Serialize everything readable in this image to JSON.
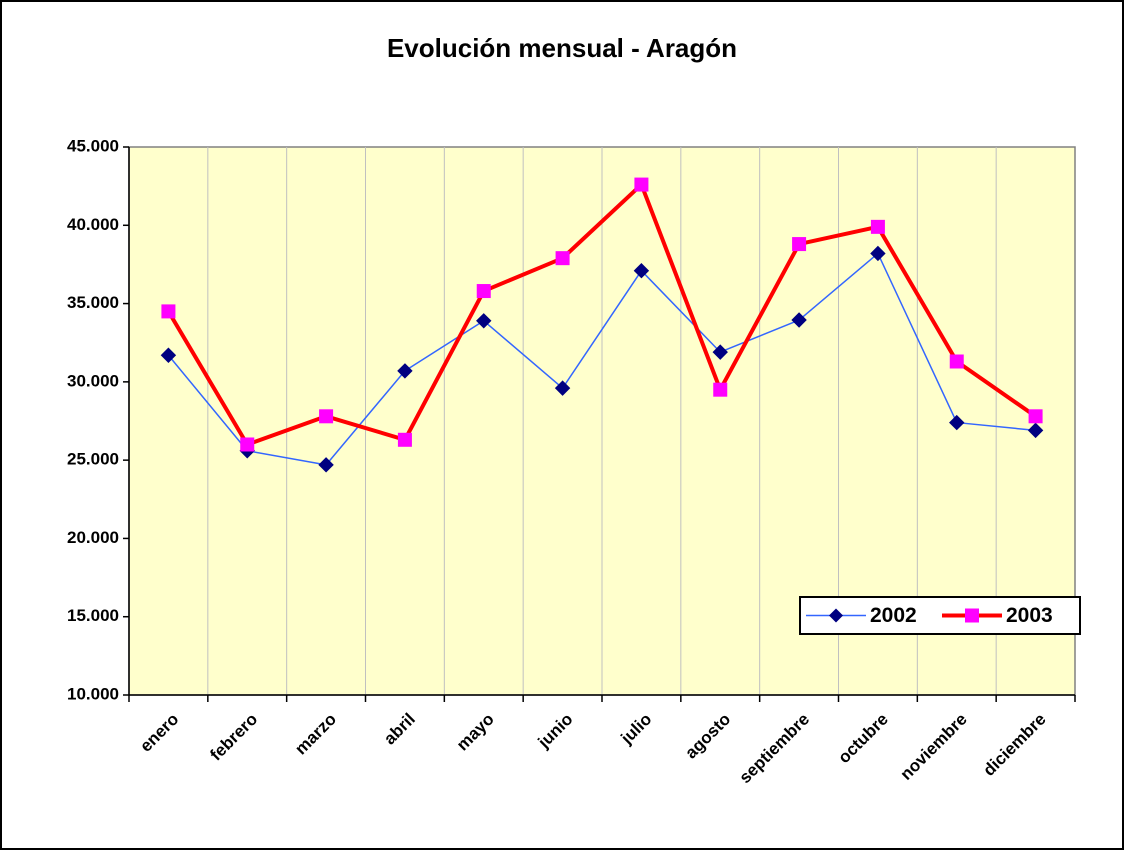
{
  "chart_data": {
    "type": "line",
    "title": "Evolución mensual - Aragón",
    "categories": [
      "enero",
      "febrero",
      "marzo",
      "abril",
      "mayo",
      "junio",
      "julio",
      "agosto",
      "septiembre",
      "octubre",
      "noviembre",
      "diciembre"
    ],
    "series": [
      {
        "name": "2002",
        "color": "#3366ff",
        "marker_color": "#000080",
        "marker": "diamond",
        "values": [
          31700,
          25600,
          24700,
          30700,
          33900,
          29600,
          37100,
          31900,
          33950,
          38200,
          27400,
          26900
        ]
      },
      {
        "name": "2003",
        "color": "#ff0000",
        "marker_color": "#ff00ff",
        "marker": "square",
        "values": [
          34500,
          26000,
          27800,
          26300,
          35800,
          37900,
          42600,
          29500,
          38800,
          39900,
          31300,
          27800
        ]
      }
    ],
    "ylim": [
      10000,
      45000
    ],
    "yticks": [
      {
        "value": 10000,
        "label": "10.000"
      },
      {
        "value": 15000,
        "label": "15.000"
      },
      {
        "value": 20000,
        "label": "20.000"
      },
      {
        "value": 25000,
        "label": "25.000"
      },
      {
        "value": 30000,
        "label": "30.000"
      },
      {
        "value": 35000,
        "label": "35.000"
      },
      {
        "value": 40000,
        "label": "40.000"
      },
      {
        "value": 45000,
        "label": "45.000"
      }
    ],
    "grid": "x",
    "legend": "right",
    "plot_background": "#ffffcc"
  }
}
